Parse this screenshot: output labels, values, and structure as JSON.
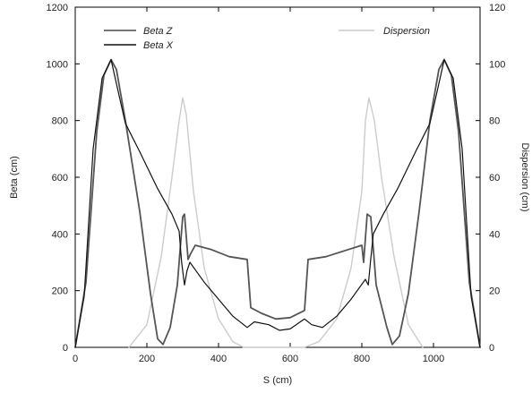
{
  "chart_data": {
    "type": "line",
    "xlabel": "S (cm)",
    "ylabel": "Beta (cm)",
    "y2label": "Dispersion (cm)",
    "xlim": [
      0,
      1130
    ],
    "ylim": [
      0,
      1200
    ],
    "y2lim": [
      0,
      120
    ],
    "xticks": [
      0,
      200,
      400,
      600,
      800,
      1000
    ],
    "yticks": [
      0,
      200,
      400,
      600,
      800,
      1000,
      1200
    ],
    "y2ticks": [
      0,
      20,
      40,
      60,
      80,
      100,
      120
    ],
    "grid": false,
    "legend": [
      {
        "label": "Beta Z",
        "color": "#777777",
        "placement": "top-left"
      },
      {
        "label": "Beta X",
        "color": "#111111",
        "placement": "top-left"
      },
      {
        "label": "Dispersion",
        "color": "#cccccc",
        "placement": "top-right"
      }
    ],
    "series": [
      {
        "name": "Beta Z",
        "axis": "left",
        "color": "#555555",
        "points": [
          [
            0,
            0
          ],
          [
            30,
            230
          ],
          [
            60,
            760
          ],
          [
            80,
            960
          ],
          [
            100,
            1015
          ],
          [
            115,
            980
          ],
          [
            140,
            800
          ],
          [
            180,
            480
          ],
          [
            210,
            190
          ],
          [
            230,
            30
          ],
          [
            245,
            10
          ],
          [
            265,
            70
          ],
          [
            285,
            220
          ],
          [
            300,
            460
          ],
          [
            305,
            470
          ],
          [
            315,
            310
          ],
          [
            322,
            330
          ],
          [
            335,
            360
          ],
          [
            380,
            345
          ],
          [
            430,
            320
          ],
          [
            480,
            310
          ],
          [
            490,
            140
          ],
          [
            520,
            120
          ],
          [
            560,
            100
          ],
          [
            600,
            105
          ],
          [
            640,
            130
          ],
          [
            650,
            310
          ],
          [
            700,
            320
          ],
          [
            750,
            340
          ],
          [
            800,
            360
          ],
          [
            805,
            300
          ],
          [
            815,
            470
          ],
          [
            825,
            460
          ],
          [
            840,
            220
          ],
          [
            870,
            70
          ],
          [
            885,
            10
          ],
          [
            905,
            40
          ],
          [
            930,
            190
          ],
          [
            960,
            480
          ],
          [
            990,
            800
          ],
          [
            1015,
            980
          ],
          [
            1030,
            1015
          ],
          [
            1050,
            960
          ],
          [
            1070,
            760
          ],
          [
            1100,
            230
          ],
          [
            1130,
            0
          ]
        ]
      },
      {
        "name": "Beta X",
        "axis": "left",
        "color": "#111111",
        "points": [
          [
            0,
            0
          ],
          [
            25,
            180
          ],
          [
            50,
            700
          ],
          [
            75,
            950
          ],
          [
            100,
            1015
          ],
          [
            115,
            930
          ],
          [
            140,
            790
          ],
          [
            180,
            690
          ],
          [
            230,
            560
          ],
          [
            270,
            470
          ],
          [
            290,
            410
          ],
          [
            297,
            300
          ],
          [
            305,
            220
          ],
          [
            312,
            270
          ],
          [
            320,
            300
          ],
          [
            360,
            230
          ],
          [
            400,
            170
          ],
          [
            440,
            110
          ],
          [
            480,
            70
          ],
          [
            500,
            90
          ],
          [
            540,
            80
          ],
          [
            570,
            60
          ],
          [
            600,
            65
          ],
          [
            640,
            100
          ],
          [
            660,
            80
          ],
          [
            690,
            70
          ],
          [
            730,
            110
          ],
          [
            770,
            170
          ],
          [
            810,
            240
          ],
          [
            818,
            220
          ],
          [
            824,
            300
          ],
          [
            832,
            400
          ],
          [
            860,
            470
          ],
          [
            900,
            560
          ],
          [
            950,
            690
          ],
          [
            990,
            790
          ],
          [
            1015,
            930
          ],
          [
            1030,
            1015
          ],
          [
            1055,
            950
          ],
          [
            1080,
            700
          ],
          [
            1105,
            180
          ],
          [
            1130,
            0
          ]
        ]
      },
      {
        "name": "Dispersion",
        "axis": "right",
        "color": "#cccccc",
        "points": [
          [
            150,
            0
          ],
          [
            200,
            8
          ],
          [
            240,
            32
          ],
          [
            270,
            60
          ],
          [
            290,
            80
          ],
          [
            300,
            88
          ],
          [
            310,
            82
          ],
          [
            330,
            55
          ],
          [
            360,
            28
          ],
          [
            400,
            10
          ],
          [
            440,
            2
          ],
          [
            470,
            0
          ],
          [
            640,
            0
          ],
          [
            680,
            2
          ],
          [
            730,
            10
          ],
          [
            770,
            28
          ],
          [
            800,
            55
          ],
          [
            810,
            80
          ],
          [
            820,
            88
          ],
          [
            835,
            80
          ],
          [
            855,
            60
          ],
          [
            890,
            32
          ],
          [
            930,
            8
          ],
          [
            970,
            0
          ]
        ]
      }
    ]
  }
}
